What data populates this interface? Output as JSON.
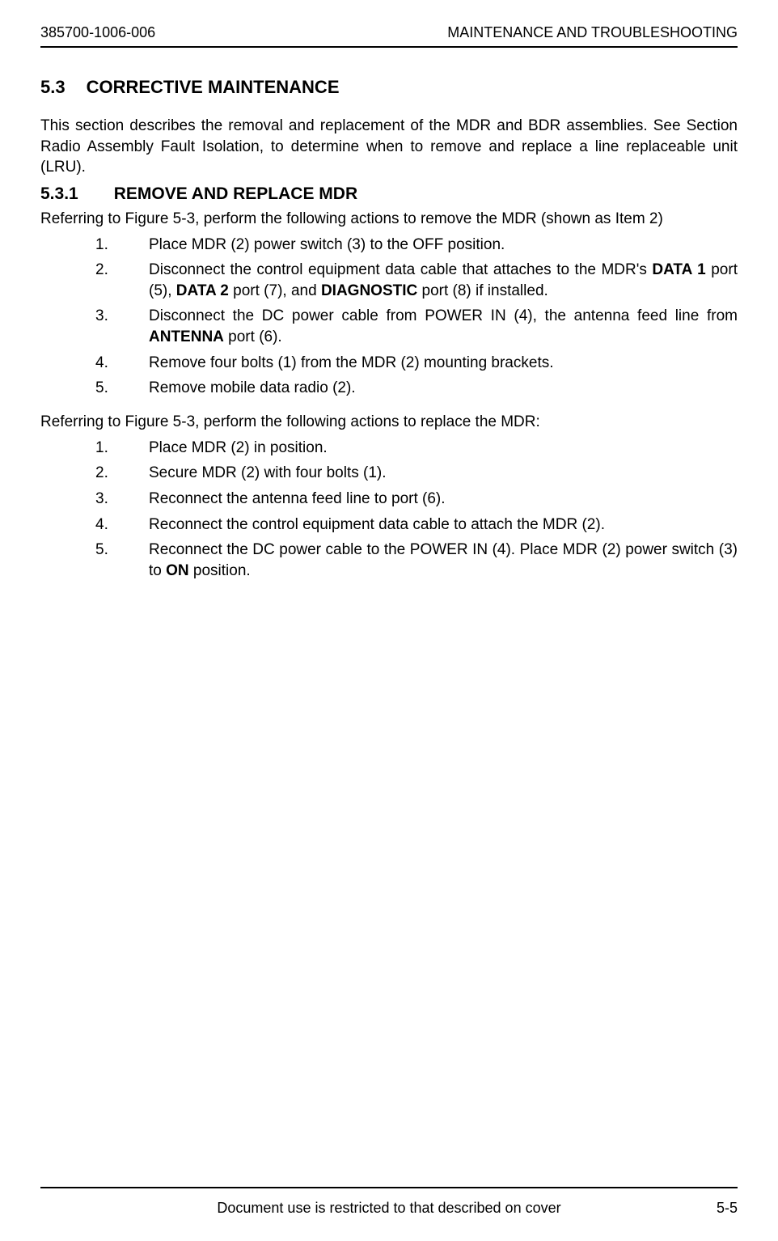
{
  "header": {
    "doc_number": "385700-1006-006",
    "title": "MAINTENANCE AND TROUBLESHOOTING"
  },
  "section": {
    "number": "5.3",
    "title": "CORRECTIVE MAINTENANCE"
  },
  "intro_paragraph": "This section describes the removal and replacement of the MDR and BDR assemblies.  See Section  Radio Assembly Fault Isolation, to determine when to remove and replace a line replaceable unit (LRU).",
  "subsection": {
    "number": "5.3.1",
    "title": "REMOVE AND REPLACE MDR"
  },
  "remove": {
    "intro": "Referring to Figure 5-3, perform the following actions to remove the MDR (shown as Item 2)",
    "items": [
      {
        "num": "1.",
        "text": "Place MDR (2) power switch (3) to the OFF position."
      },
      {
        "num": "2.",
        "text_parts": [
          {
            "t": "Disconnect the control equipment data cable that attaches to the MDR's ",
            "b": false
          },
          {
            "t": "DATA 1",
            "b": true
          },
          {
            "t": " port (5), ",
            "b": false
          },
          {
            "t": "DATA 2",
            "b": true
          },
          {
            "t": " port (7), and ",
            "b": false
          },
          {
            "t": "DIAGNOSTIC",
            "b": true
          },
          {
            "t": " port (8) if installed.",
            "b": false
          }
        ]
      },
      {
        "num": "3.",
        "text_parts": [
          {
            "t": "Disconnect the DC power cable from POWER IN (4), the antenna feed line from ",
            "b": false
          },
          {
            "t": "ANTENNA",
            "b": true
          },
          {
            "t": " port (6).",
            "b": false
          }
        ]
      },
      {
        "num": "4.",
        "text": "Remove four bolts (1) from the MDR (2) mounting brackets."
      },
      {
        "num": "5.",
        "text": "Remove mobile data radio (2)."
      }
    ]
  },
  "replace": {
    "intro": "Referring to Figure 5-3, perform the following actions to replace the MDR:",
    "items": [
      {
        "num": "1.",
        "text": "Place MDR (2) in position."
      },
      {
        "num": "2.",
        "text": "Secure MDR (2) with four bolts (1)."
      },
      {
        "num": "3.",
        "text": "Reconnect the antenna feed line to port (6)."
      },
      {
        "num": "4.",
        "text": "Reconnect the control equipment data cable to attach the MDR (2)."
      },
      {
        "num": "5.",
        "text_parts": [
          {
            "t": "Reconnect the DC power cable to the POWER IN (4).  Place MDR (2) power switch (3) to ",
            "b": false
          },
          {
            "t": "ON",
            "b": true
          },
          {
            "t": " position.",
            "b": false
          }
        ]
      }
    ]
  },
  "footer": {
    "center": "Document use is restricted to that described on cover",
    "right": "5-5"
  },
  "colors": {
    "text": "#000000",
    "background": "#ffffff",
    "rule": "#000000"
  },
  "typography": {
    "body_fontsize": 19,
    "heading_fontsize": 22,
    "subheading_fontsize": 21,
    "header_fontsize": 18,
    "footer_fontsize": 18,
    "font_family": "Arial"
  }
}
